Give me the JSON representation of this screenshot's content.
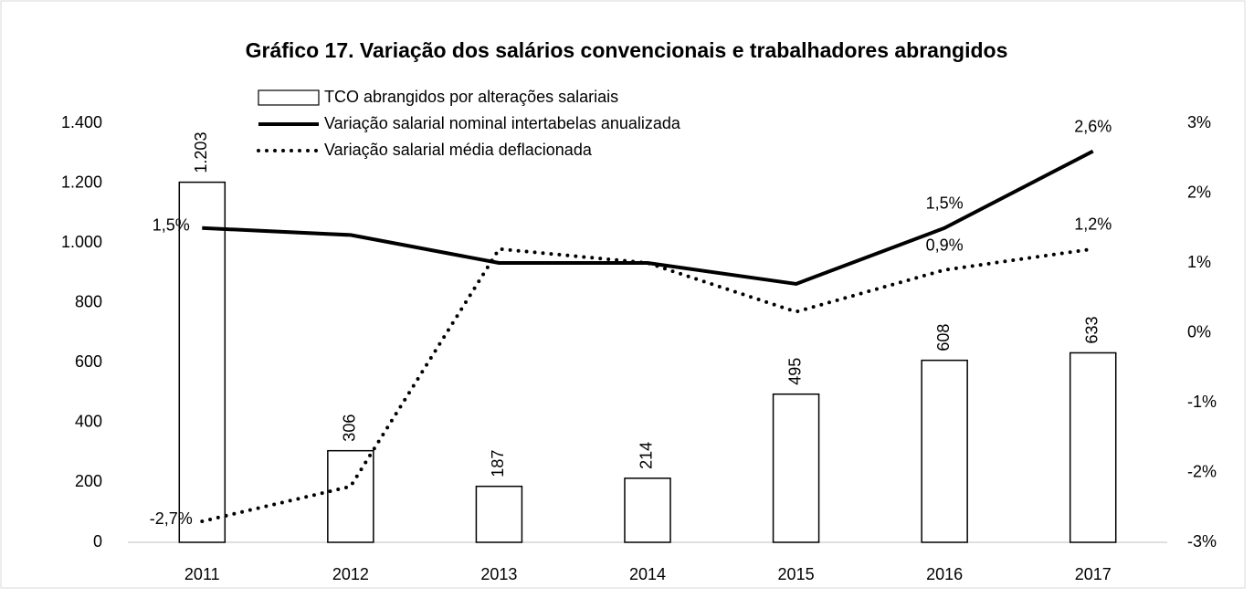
{
  "chart_data": {
    "type": "bar-line",
    "title": "Gráfico 17. Variação dos salários convencionais e trabalhadores abrangidos",
    "categories": [
      "2011",
      "2012",
      "2013",
      "2014",
      "2015",
      "2016",
      "2017"
    ],
    "series": [
      {
        "name": "TCO abrangidos por alterações salariais",
        "type": "bar",
        "color": "#ffffff",
        "values": [
          1203,
          306,
          187,
          214,
          495,
          608,
          633
        ],
        "value_labels": [
          "1.203",
          "306",
          "187",
          "214",
          "495",
          "608",
          "633"
        ]
      },
      {
        "name": "Variação salarial nominal intertabelas anualizada",
        "type": "line",
        "style": "solid",
        "axis": "y2",
        "color": "#000000",
        "values": [
          1.5,
          1.4,
          1.0,
          1.0,
          0.7,
          1.5,
          2.6
        ],
        "value_labels": [
          "1,5%",
          null,
          null,
          null,
          null,
          "1,5%",
          "2,6%"
        ]
      },
      {
        "name": "Variação salarial média deflacionada",
        "type": "line",
        "style": "dotted",
        "axis": "y2",
        "color": "#000000",
        "values": [
          -2.7,
          -2.2,
          1.2,
          1.0,
          0.3,
          0.9,
          1.2
        ],
        "value_labels": [
          "-2,7%",
          null,
          null,
          null,
          null,
          "0,9%",
          "1,2%"
        ]
      }
    ],
    "ylim": [
      0,
      1400
    ],
    "yticks": [
      0,
      200,
      400,
      600,
      800,
      {
        "value": 1000,
        "label": "1.000"
      },
      {
        "value": 1200,
        "label": "1.200"
      },
      {
        "value": 1400,
        "label": "1.400"
      }
    ],
    "y2lim": [
      -3,
      3
    ],
    "y2ticks": [
      {
        "value": -3,
        "label": "-3%"
      },
      {
        "value": -2,
        "label": "-2%"
      },
      {
        "value": -1,
        "label": "-1%"
      },
      {
        "value": 0,
        "label": "0%"
      },
      {
        "value": 1,
        "label": "1%"
      },
      {
        "value": 2,
        "label": "2%"
      },
      {
        "value": 3,
        "label": "3%"
      }
    ],
    "grid": false
  }
}
